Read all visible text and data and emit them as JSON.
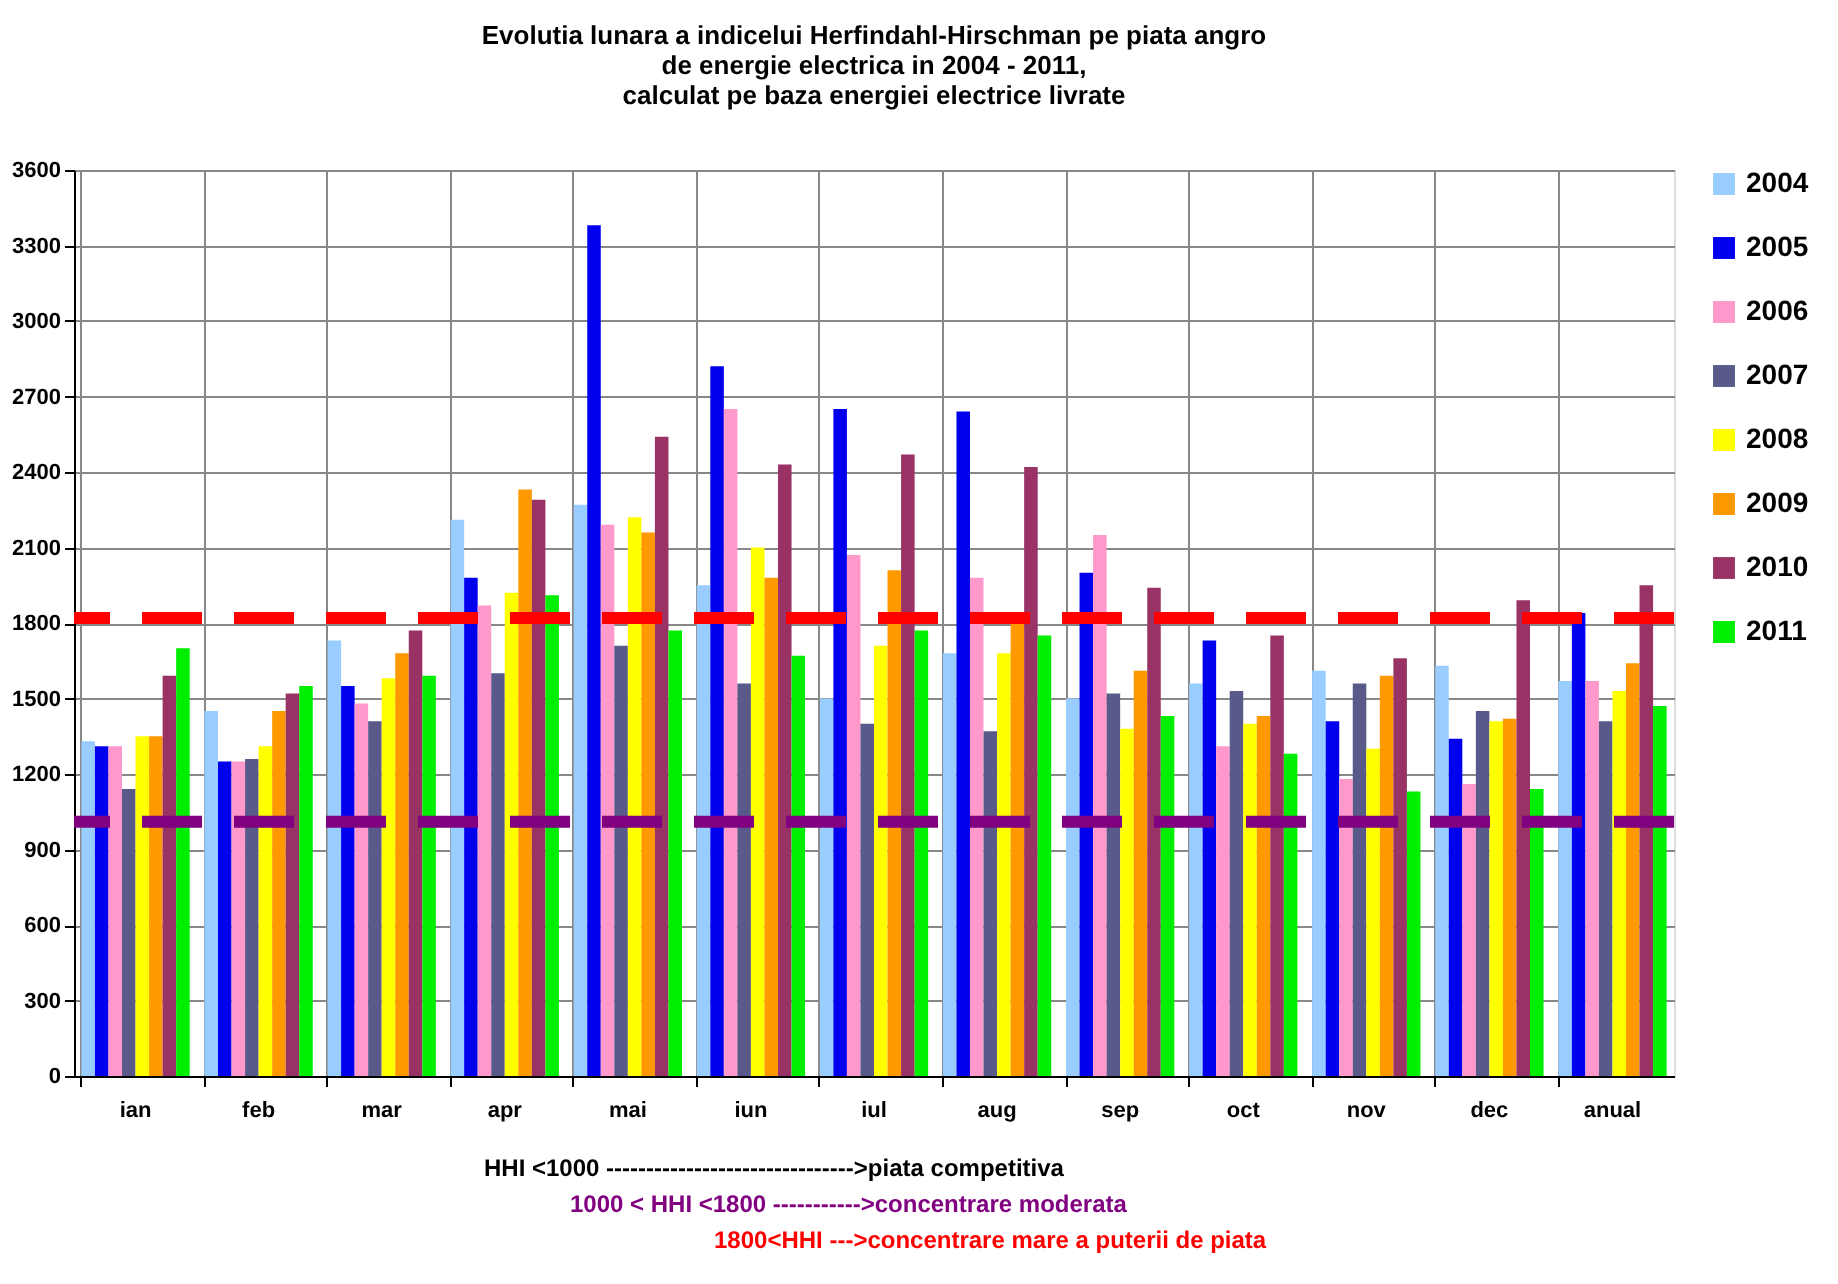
{
  "chart_data": {
    "type": "bar",
    "title": [
      "Evolutia lunara a indicelui Herfindahl-Hirschman pe piata angro",
      "de energie electrica in 2004 - 2011,",
      "calculat pe baza energiei electrice livrate"
    ],
    "categories": [
      "ian",
      "feb",
      "mar",
      "apr",
      "mai",
      "iun",
      "iul",
      "aug",
      "sep",
      "oct",
      "nov",
      "dec",
      "anual"
    ],
    "series": [
      {
        "name": "2004",
        "color": "#99ccff",
        "values": [
          1330,
          1450,
          1730,
          2210,
          2270,
          1950,
          1500,
          1680,
          1500,
          1560,
          1610,
          1630,
          1570
        ]
      },
      {
        "name": "2005",
        "color": "#0000ee",
        "values": [
          1310,
          1250,
          1550,
          1980,
          3380,
          2820,
          2650,
          2640,
          2000,
          1730,
          1410,
          1340,
          1840
        ]
      },
      {
        "name": "2006",
        "color": "#ff99cc",
        "values": [
          1310,
          1250,
          1480,
          1870,
          2190,
          2650,
          2070,
          1980,
          2150,
          1310,
          1180,
          1160,
          1570
        ]
      },
      {
        "name": "2007",
        "color": "#5a5a8a",
        "values": [
          1140,
          1260,
          1410,
          1600,
          1710,
          1560,
          1400,
          1370,
          1520,
          1530,
          1560,
          1450,
          1410
        ]
      },
      {
        "name": "2008",
        "color": "#ffff00",
        "values": [
          1350,
          1310,
          1580,
          1920,
          2220,
          2100,
          1710,
          1680,
          1380,
          1400,
          1300,
          1410,
          1530
        ]
      },
      {
        "name": "2009",
        "color": "#ff9900",
        "values": [
          1350,
          1450,
          1680,
          2330,
          2160,
          1980,
          2010,
          1800,
          1610,
          1430,
          1590,
          1420,
          1640
        ]
      },
      {
        "name": "2010",
        "color": "#993366",
        "values": [
          1590,
          1520,
          1770,
          2290,
          2540,
          2430,
          2470,
          2420,
          1940,
          1750,
          1660,
          1890,
          1950
        ]
      },
      {
        "name": "2011",
        "color": "#00ee00",
        "values": [
          1700,
          1550,
          1590,
          1910,
          1770,
          1670,
          1770,
          1750,
          1430,
          1280,
          1130,
          1140,
          1470
        ]
      }
    ],
    "ylim": [
      0,
      3600
    ],
    "yticks": [
      0,
      300,
      600,
      900,
      1200,
      1500,
      1800,
      2100,
      2400,
      2700,
      3000,
      3300,
      3600
    ],
    "ref_lines": [
      {
        "axis": "y",
        "value": 1820,
        "color": "#ff0000",
        "line_style": "dashed"
      },
      {
        "axis": "y",
        "value": 1010,
        "color": "#800080",
        "line_style": "dashed"
      }
    ],
    "annotations": [
      "HHI <1000 ------------------------------->piata competitiva",
      "1000 < HHI <1800 ----------->concentrare moderata",
      "1800<HHI --->concentrare mare a puterii de piata"
    ],
    "grid": true,
    "legend": "right"
  }
}
